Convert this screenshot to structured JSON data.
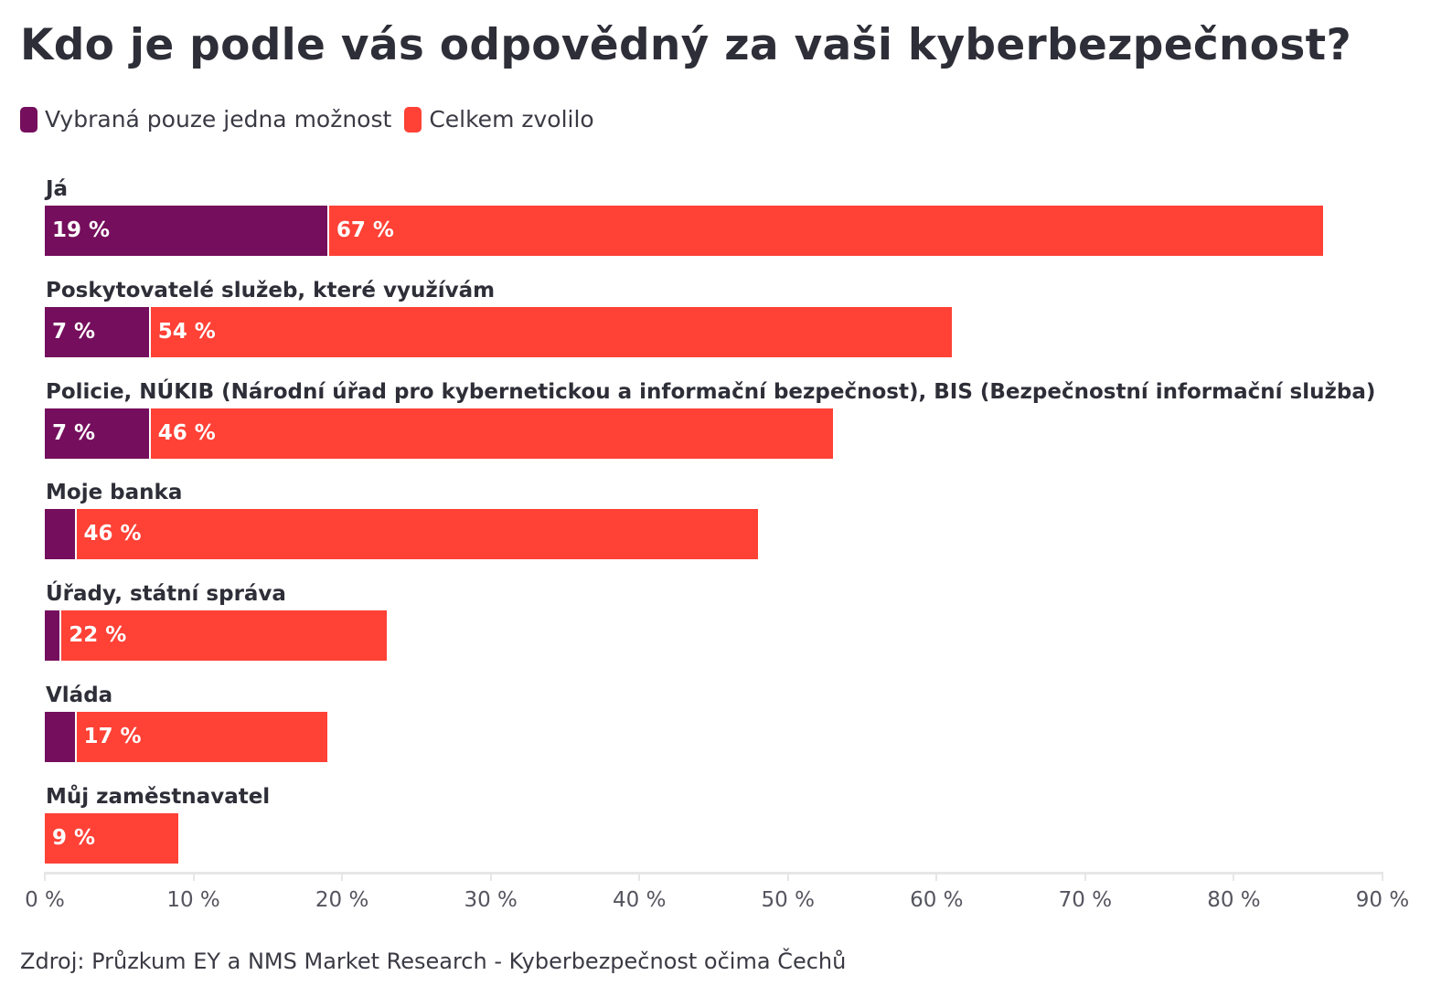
{
  "chart_data": {
    "type": "bar",
    "orientation": "horizontal",
    "stacked": true,
    "title": "Kdo je podle vás odpovědný za vaši kyberbezpečnost?",
    "categories": [
      "Já",
      "Poskytovatelé služeb, které využívám",
      "Policie, NÚKIB (Národní úřad pro kybernetickou a informační bezpečnost), BIS (Bezpečnostní informační služba)",
      "Moje banka",
      "Úřady, státní správa",
      "Vláda",
      "Můj zaměstnavatel"
    ],
    "series": [
      {
        "name": "Vybraná pouze jedna možnost",
        "color": "#750e5c",
        "values": [
          19,
          7,
          7,
          2,
          1,
          2,
          0
        ],
        "labels": [
          "19 %",
          "7 %",
          "7 %",
          "",
          "",
          "",
          ""
        ]
      },
      {
        "name": "Celkem zvolilo",
        "color": "#ff4136",
        "values": [
          67,
          54,
          46,
          46,
          22,
          17,
          9
        ],
        "labels": [
          "67 %",
          "54 %",
          "46 %",
          "46 %",
          "22 %",
          "17 %",
          "9 %"
        ]
      }
    ],
    "xlim": [
      0,
      90
    ],
    "xticks": [
      "0 %",
      "10 %",
      "20 %",
      "30 %",
      "40 %",
      "50 %",
      "60 %",
      "70 %",
      "80 %",
      "90 %"
    ],
    "grid": false,
    "legend_placement": "top-left",
    "source": "Zdroj: Průzkum EY a NMS Market Research - Kyberbezpečnost očima Čechů"
  }
}
